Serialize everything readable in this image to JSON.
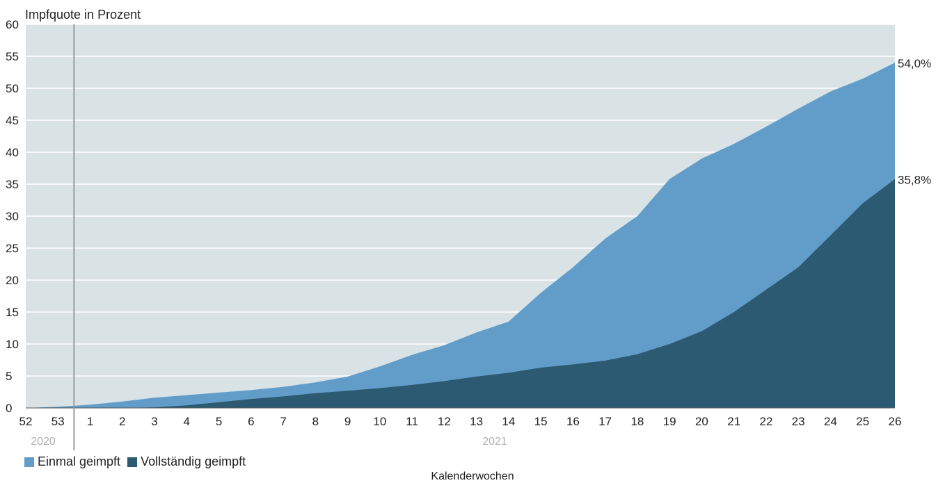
{
  "chart_data": {
    "type": "area",
    "title": "",
    "ylabel": "Impfquote in Prozent",
    "xlabel": "Kalenderwochen",
    "ylim": [
      0,
      60
    ],
    "yticks": [
      "0",
      "5",
      "10",
      "15",
      "20",
      "25",
      "30",
      "35",
      "40",
      "45",
      "50",
      "55",
      "60"
    ],
    "xticks": [
      "52",
      "53",
      "1",
      "2",
      "3",
      "4",
      "5",
      "6",
      "7",
      "8",
      "9",
      "10",
      "11",
      "12",
      "13",
      "14",
      "15",
      "16",
      "17",
      "18",
      "19",
      "20",
      "21",
      "22",
      "23",
      "24",
      "25",
      "26"
    ],
    "year_labels": [
      "2020",
      "2021"
    ],
    "x": [
      "52",
      "53",
      "1",
      "2",
      "3",
      "4",
      "5",
      "6",
      "7",
      "8",
      "9",
      "10",
      "11",
      "12",
      "13",
      "14",
      "15",
      "16",
      "17",
      "18",
      "19",
      "20",
      "21",
      "22",
      "23",
      "24",
      "25",
      "26"
    ],
    "series": [
      {
        "name": "Einmal geimpft",
        "color": "#629dc9",
        "values": [
          0,
          0.2,
          0.5,
          1.0,
          1.6,
          2.0,
          2.4,
          2.8,
          3.3,
          4.0,
          4.9,
          6.5,
          8.3,
          9.8,
          11.8,
          13.5,
          18.0,
          22.0,
          26.5,
          30.0,
          35.8,
          39.0,
          41.3,
          44.0,
          46.8,
          49.5,
          51.5,
          54.0
        ]
      },
      {
        "name": "Vollständig geimpft",
        "color": "#2c5a72",
        "values": [
          0,
          0,
          0,
          0,
          0.1,
          0.4,
          0.9,
          1.4,
          1.8,
          2.3,
          2.7,
          3.1,
          3.6,
          4.2,
          4.9,
          5.5,
          6.3,
          6.8,
          7.4,
          8.4,
          10.0,
          12.0,
          15.0,
          18.5,
          22.0,
          27.0,
          32.0,
          35.8
        ]
      }
    ],
    "end_labels": [
      "54,0%",
      "35,8%"
    ],
    "colors": {
      "background": "#d9e3e6",
      "grid": "#ffffff",
      "separator": "#9b9b9b"
    }
  },
  "legend": [
    {
      "label": "Einmal geimpft",
      "color": "#629dc9"
    },
    {
      "label": "Vollständig geimpft",
      "color": "#2c5a72"
    }
  ]
}
